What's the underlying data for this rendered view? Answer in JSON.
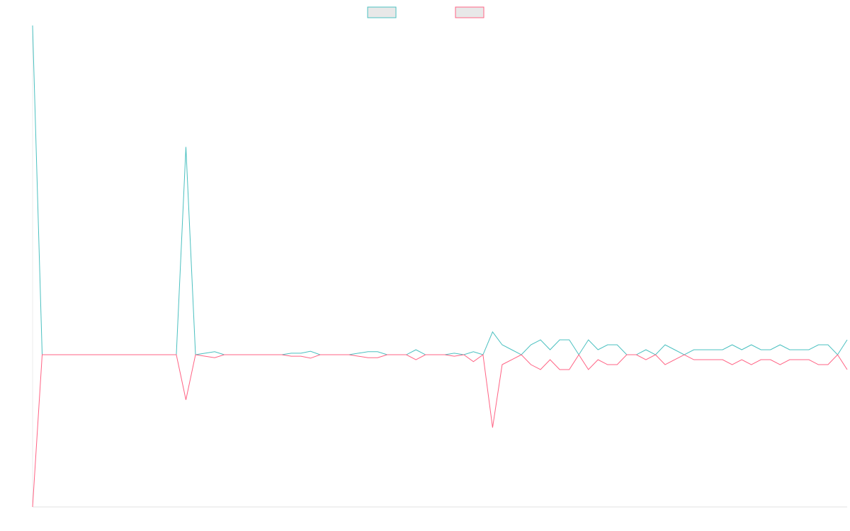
{
  "chart_data": {
    "type": "line",
    "categories": [
      null,
      null,
      null,
      null,
      null,
      null,
      null,
      null,
      null,
      null,
      null,
      null,
      null,
      null,
      null,
      null,
      null,
      null,
      null,
      null,
      null,
      null,
      null,
      null,
      null,
      null,
      null,
      null,
      null,
      null,
      null,
      null,
      null,
      null,
      null,
      null,
      null,
      null,
      null,
      null,
      null,
      null,
      null,
      null,
      null,
      null,
      null,
      null,
      null,
      null,
      null,
      null,
      null,
      null,
      null,
      null,
      null,
      null,
      null,
      null,
      null,
      null,
      null,
      null,
      null,
      null,
      null,
      null,
      null,
      null,
      null,
      null,
      null,
      null,
      null,
      null,
      null,
      null,
      null,
      null,
      null,
      null,
      null,
      null,
      null,
      null
    ],
    "series": [
      {
        "color": "#4bc0c0",
        "values": [
          66.4,
          0,
          0,
          0,
          0,
          0,
          0,
          0,
          0,
          0,
          0,
          0,
          0,
          0,
          0,
          0,
          41.9,
          0,
          0.3,
          0.6,
          0,
          0,
          0,
          0,
          0,
          0,
          0,
          0.3,
          0.3,
          0.7,
          0,
          0,
          0,
          0,
          0.3,
          0.6,
          0.6,
          0,
          0,
          0,
          1,
          0,
          0,
          0,
          0.3,
          0,
          0.6,
          0,
          4.6,
          2,
          1,
          0,
          2,
          3,
          1,
          3,
          3,
          0,
          3,
          1,
          2,
          2,
          0,
          0,
          1,
          0,
          2,
          1,
          0,
          1,
          1,
          1,
          1,
          2,
          1,
          2,
          1,
          1,
          2,
          1,
          1,
          1,
          2,
          2,
          0,
          3
        ]
      },
      {
        "color": "#ff6384",
        "values": [
          -30.7,
          0,
          0,
          0,
          0,
          0,
          0,
          0,
          0,
          0,
          0,
          0,
          0,
          0,
          0,
          0,
          -9.1,
          0,
          -0.3,
          -0.6,
          0,
          0,
          0,
          0,
          0,
          0,
          0,
          -0.3,
          -0.3,
          -0.7,
          0,
          0,
          0,
          0,
          -0.3,
          -0.6,
          -0.6,
          0,
          0,
          0,
          -1,
          0,
          0,
          0,
          -0.3,
          0,
          -1.4,
          0,
          -14.7,
          -2,
          -1,
          0,
          -2,
          -3,
          -1,
          -3,
          -3,
          0,
          -3,
          -1,
          -2,
          -2,
          0,
          0,
          -1,
          0,
          -2,
          -1,
          0,
          -1,
          -1,
          -1,
          -1,
          -2,
          -1,
          -2,
          -1,
          -1,
          -2,
          -1,
          -1,
          -1,
          -2,
          -2,
          0,
          -3
        ]
      }
    ],
    "ylim": [
      -30.7,
      66.4
    ],
    "legend": "top"
  }
}
